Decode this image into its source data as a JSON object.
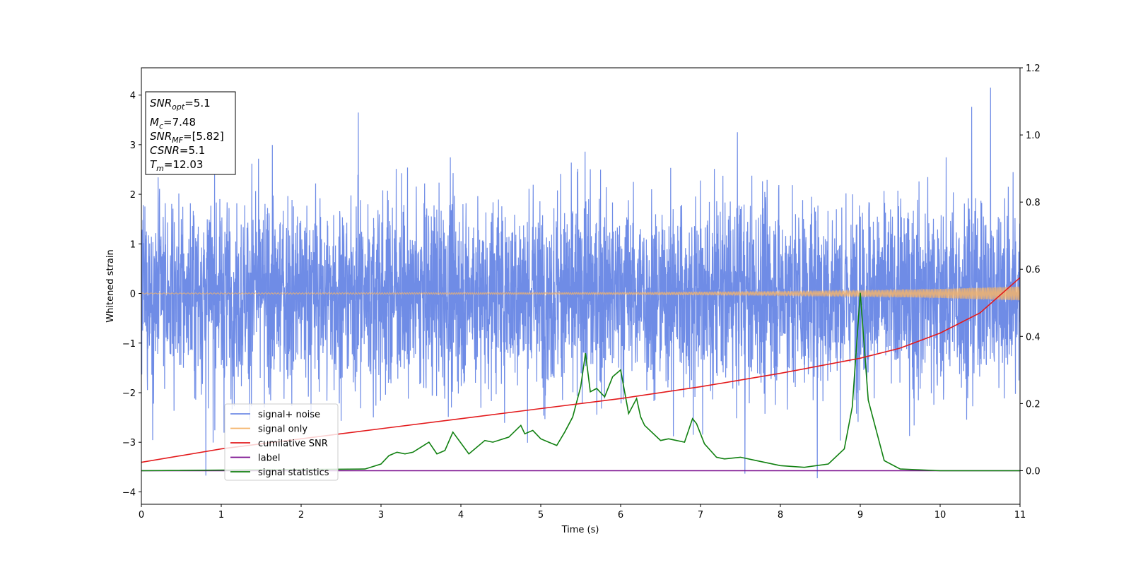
{
  "chart_data": {
    "type": "line",
    "xlabel": "Time (s)",
    "ylabel": "Whitened strain",
    "xlim": [
      0,
      11
    ],
    "ylim": [
      -4.25,
      4.55
    ],
    "y2lim": [
      -0.1,
      1.2
    ],
    "grid": false,
    "x_ticks": [
      "0",
      "1",
      "2",
      "3",
      "4",
      "5",
      "6",
      "7",
      "8",
      "9",
      "10",
      "11"
    ],
    "y_ticks": [
      "4",
      "3",
      "2",
      "1",
      "0",
      "−1",
      "−2",
      "−3",
      "−4"
    ],
    "y2_ticks": [
      "1.2",
      "1.0",
      "0.8",
      "0.6",
      "0.4",
      "0.2",
      "0.0"
    ],
    "legend_position": "lower-left",
    "series": [
      {
        "name": "signal+ noise",
        "axis": "left",
        "color": "#6f8ce6",
        "description_values": "noisy band approximately between -2.5 and 2.5 with spikes to about ±3.8"
      },
      {
        "name": "signal only",
        "axis": "left",
        "color": "#f4b46b",
        "amplitude_points": {
          "x": [
            0,
            6,
            8,
            9,
            10,
            11
          ],
          "y": [
            0.01,
            0.02,
            0.04,
            0.06,
            0.09,
            0.14
          ]
        }
      },
      {
        "name": "cumilative SNR",
        "axis": "right",
        "color": "#e31a1c",
        "x": [
          0,
          1,
          2,
          3,
          4,
          5,
          6,
          7,
          8,
          9,
          9.5,
          10,
          10.5,
          11
        ],
        "y": [
          0.025,
          0.065,
          0.095,
          0.125,
          0.155,
          0.185,
          0.215,
          0.25,
          0.29,
          0.335,
          0.365,
          0.41,
          0.47,
          0.575
        ]
      },
      {
        "name": "label",
        "axis": "right",
        "color": "#7b0f8f",
        "x": [
          0,
          11
        ],
        "y": [
          0.0,
          0.0
        ]
      },
      {
        "name": "signal statistics",
        "axis": "right",
        "color": "#108010",
        "x": [
          0,
          2.8,
          3.0,
          3.1,
          3.2,
          3.3,
          3.4,
          3.5,
          3.6,
          3.7,
          3.8,
          3.9,
          4.1,
          4.3,
          4.4,
          4.6,
          4.75,
          4.8,
          4.9,
          5.0,
          5.1,
          5.2,
          5.3,
          5.4,
          5.5,
          5.56,
          5.62,
          5.7,
          5.8,
          5.9,
          6.0,
          6.1,
          6.2,
          6.25,
          6.3,
          6.5,
          6.6,
          6.7,
          6.8,
          6.9,
          6.95,
          7.05,
          7.2,
          7.3,
          7.5,
          7.7,
          8.0,
          8.3,
          8.6,
          8.8,
          8.9,
          9.0,
          9.1,
          9.2,
          9.3,
          9.5,
          10.0,
          11.0
        ],
        "y": [
          0.0,
          0.005,
          0.02,
          0.045,
          0.055,
          0.05,
          0.055,
          0.07,
          0.085,
          0.05,
          0.06,
          0.115,
          0.05,
          0.09,
          0.085,
          0.1,
          0.135,
          0.11,
          0.12,
          0.095,
          0.085,
          0.075,
          0.115,
          0.16,
          0.25,
          0.35,
          0.235,
          0.245,
          0.22,
          0.28,
          0.3,
          0.17,
          0.215,
          0.16,
          0.135,
          0.09,
          0.095,
          0.09,
          0.085,
          0.155,
          0.14,
          0.08,
          0.04,
          0.035,
          0.04,
          0.03,
          0.015,
          0.01,
          0.02,
          0.065,
          0.19,
          0.53,
          0.21,
          0.12,
          0.03,
          0.005,
          0.0,
          0.0
        ]
      }
    ],
    "info_box": {
      "snr_opt": {
        "main": "SNR",
        "sub": "opt",
        "value": "=5.1"
      },
      "mc": {
        "main": "M",
        "sub": "c",
        "value": "=7.48"
      },
      "snr_mf": {
        "main": "SNR",
        "sub": "MF",
        "value": "=[5.82]"
      },
      "csnr": {
        "main": "CSNR",
        "value": "=5.1"
      },
      "tm": {
        "main": "T",
        "sub": "m",
        "value": "=12.03"
      }
    }
  }
}
